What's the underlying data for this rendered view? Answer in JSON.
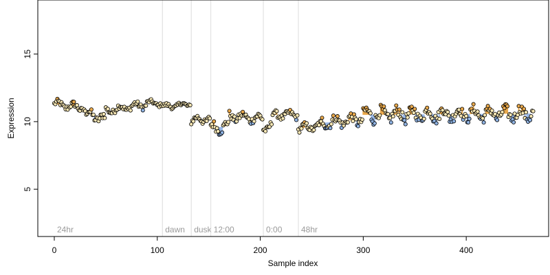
{
  "chart_data": {
    "type": "scatter",
    "xlabel": "Sample index",
    "ylabel": "Expression",
    "xlim": [
      -16,
      480
    ],
    "ylim": [
      1.5,
      19
    ],
    "xticks": [
      0,
      100,
      200,
      300,
      400
    ],
    "yticks": [
      5,
      10,
      15
    ],
    "grid": false,
    "colors": {
      "point_fill_default": "#f7e7b4",
      "point_fill_peak": "#e9a94c",
      "point_fill_trough": "#8fb3e3",
      "point_stroke": "#000000",
      "segment_peak": "#e9a94c",
      "segment_trough": "#9ab9e6",
      "phase_line": "#dcdcdc",
      "phase_label": "#9a9a9a"
    },
    "phase_markers": [
      {
        "label": "24hr",
        "x": 0
      },
      {
        "label": "dawn",
        "x": 105
      },
      {
        "label": "dusk",
        "x": 133
      },
      {
        "label": "12:00",
        "x": 152
      },
      {
        "label": "0:00",
        "x": 203
      },
      {
        "label": "48hr",
        "x": 237
      }
    ],
    "segments": [
      {
        "start": 0,
        "end": 30,
        "level": 11.3,
        "amp": 0.3,
        "drift": -0.3
      },
      {
        "start": 30,
        "end": 50,
        "level": 10.6,
        "amp": 0.4,
        "drift": -0.4
      },
      {
        "start": 50,
        "end": 90,
        "level": 10.8,
        "amp": 0.3,
        "drift": 0.5
      },
      {
        "start": 90,
        "end": 106,
        "level": 11.4,
        "amp": 0.2,
        "drift": -0.1
      },
      {
        "start": 106,
        "end": 133,
        "level": 11.1,
        "amp": 0.2,
        "drift": 0.2
      },
      {
        "start": 133,
        "end": 152,
        "level": 10.1,
        "amp": 0.3,
        "drift": 0.1
      },
      {
        "start": 152,
        "end": 170,
        "level": 9.5,
        "amp": 0.45,
        "drift": 0.2
      },
      {
        "start": 170,
        "end": 203,
        "level": 10.4,
        "amp": 0.35,
        "drift": -0.2
      },
      {
        "start": 203,
        "end": 212,
        "level": 9.5,
        "amp": 0.3,
        "drift": 0.3
      },
      {
        "start": 212,
        "end": 237,
        "level": 10.5,
        "amp": 0.3,
        "drift": 0.0
      },
      {
        "start": 237,
        "end": 260,
        "level": 9.5,
        "amp": 0.3,
        "drift": 0.2
      },
      {
        "start": 260,
        "end": 300,
        "level": 9.9,
        "amp": 0.45,
        "drift": 0.3
      },
      {
        "start": 300,
        "end": 466,
        "level": 10.5,
        "amp": 0.55,
        "drift": 0.1
      }
    ],
    "sample_count": 466
  }
}
